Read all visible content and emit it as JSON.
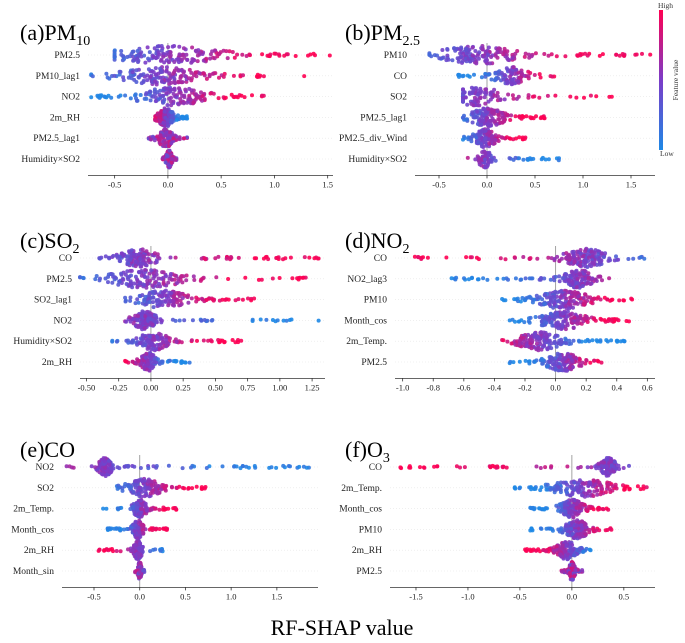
{
  "figure": {
    "xlabel": "RF-SHAP value",
    "colorbar": {
      "title": "Feature value",
      "high_label": "High",
      "low_label": "Low",
      "low_color": "#1e88e5",
      "high_color": "#ff0052"
    }
  },
  "chart_data": [
    {
      "type": "scatter",
      "id": "a",
      "title": "(a)PM",
      "title_sub": "10",
      "xlim": [
        -0.75,
        1.55
      ],
      "ticks": [
        -0.5,
        0.0,
        0.5,
        1.0,
        1.5
      ],
      "tick_labels": [
        "-0.5",
        "0.0",
        "0.5",
        "1.0",
        "1.5"
      ],
      "features": [
        {
          "name": "PM2.5",
          "min": -0.5,
          "max": 1.52,
          "center": 0.0,
          "spread": 0.55,
          "density": 1.0,
          "color_corr": 1
        },
        {
          "name": "PM10_lag1",
          "min": -0.72,
          "max": 1.28,
          "center": -0.05,
          "spread": 0.4,
          "density": 0.9,
          "color_corr": 1
        },
        {
          "name": "NO2",
          "min": -0.72,
          "max": 0.9,
          "center": 0.05,
          "spread": 0.35,
          "density": 0.9,
          "color_corr": 1
        },
        {
          "name": "2m_RH",
          "min": -0.12,
          "max": 0.18,
          "center": -0.02,
          "spread": 0.08,
          "density": 0.9,
          "color_corr": -1
        },
        {
          "name": "PM2.5_lag1",
          "min": -0.18,
          "max": 0.18,
          "center": -0.02,
          "spread": 0.07,
          "density": 0.7,
          "color_corr": 0
        },
        {
          "name": "Humidity×SO2",
          "min": -0.05,
          "max": 0.08,
          "center": 0.01,
          "spread": 0.03,
          "density": 0.7,
          "color_corr": 0
        }
      ]
    },
    {
      "type": "scatter",
      "id": "b",
      "title": "(b)PM",
      "title_sub": "2.5",
      "xlim": [
        -0.75,
        1.75
      ],
      "ticks": [
        -0.5,
        0.0,
        0.5,
        1.0,
        1.5
      ],
      "tick_labels": [
        "-0.5",
        "0.0",
        "0.5",
        "1.0",
        "1.5"
      ],
      "features": [
        {
          "name": "PM10",
          "min": -0.6,
          "max": 1.7,
          "center": -0.1,
          "spread": 0.45,
          "density": 1.0,
          "color_corr": 1
        },
        {
          "name": "CO",
          "min": -0.3,
          "max": 0.7,
          "center": 0.25,
          "spread": 0.2,
          "density": 0.6,
          "color_corr": 1
        },
        {
          "name": "SO2",
          "min": -0.25,
          "max": 1.3,
          "center": -0.1,
          "spread": 0.3,
          "density": 0.6,
          "color_corr": 1
        },
        {
          "name": "PM2.5_lag1",
          "min": -0.25,
          "max": 0.6,
          "center": 0.0,
          "spread": 0.2,
          "density": 0.9,
          "color_corr": 1
        },
        {
          "name": "PM2.5_div_Wind",
          "min": -0.25,
          "max": 0.4,
          "center": -0.02,
          "spread": 0.12,
          "density": 0.7,
          "color_corr": 1
        },
        {
          "name": "Humidity×SO2",
          "min": -0.2,
          "max": 0.75,
          "center": -0.02,
          "spread": 0.08,
          "density": 0.5,
          "color_corr": -1
        }
      ]
    },
    {
      "type": "scatter",
      "id": "c",
      "title": "(c)SO",
      "title_sub": "2",
      "xlim": [
        -0.55,
        1.35
      ],
      "ticks": [
        -0.5,
        -0.25,
        0.0,
        0.25,
        0.5,
        0.75,
        1.0,
        1.25
      ],
      "tick_labels": [
        "-0.50",
        "-0.25",
        "0.00",
        "0.25",
        "0.50",
        "0.75",
        "1.00",
        "1.25"
      ],
      "features": [
        {
          "name": "CO",
          "min": -0.4,
          "max": 1.3,
          "center": -0.1,
          "spread": 0.15,
          "density": 0.9,
          "color_corr": 1
        },
        {
          "name": "PM2.5",
          "min": -0.55,
          "max": 1.2,
          "center": -0.05,
          "spread": 0.3,
          "density": 0.9,
          "color_corr": 1
        },
        {
          "name": "SO2_lag1",
          "min": -0.2,
          "max": 0.8,
          "center": 0.1,
          "spread": 0.2,
          "density": 0.8,
          "color_corr": 1
        },
        {
          "name": "NO2",
          "min": -0.2,
          "max": 1.3,
          "center": -0.05,
          "spread": 0.1,
          "density": 0.9,
          "color_corr": -1
        },
        {
          "name": "Humidity×SO2",
          "min": -0.3,
          "max": 0.7,
          "center": 0.02,
          "spread": 0.12,
          "density": 0.8,
          "color_corr": 1
        },
        {
          "name": "2m_RH",
          "min": -0.2,
          "max": 0.3,
          "center": -0.02,
          "spread": 0.07,
          "density": 0.7,
          "color_corr": -1
        }
      ]
    },
    {
      "type": "scatter",
      "id": "d",
      "title": "(d)NO",
      "title_sub": "2",
      "xlim": [
        -1.05,
        0.65
      ],
      "ticks": [
        -1.0,
        -0.8,
        -0.6,
        -0.4,
        -0.2,
        0.0,
        0.2,
        0.4,
        0.6
      ],
      "tick_labels": [
        "-1.0",
        "-0.8",
        "-0.6",
        "-0.4",
        "-0.2",
        "0.0",
        "0.2",
        "0.4",
        "0.6"
      ],
      "features": [
        {
          "name": "CO",
          "min": -0.92,
          "max": 0.58,
          "center": 0.2,
          "spread": 0.15,
          "density": 1.0,
          "color_corr": -1
        },
        {
          "name": "NO2_lag3",
          "min": -0.68,
          "max": 0.35,
          "center": 0.15,
          "spread": 0.1,
          "density": 0.9,
          "color_corr": 1
        },
        {
          "name": "PM10",
          "min": -0.35,
          "max": 0.5,
          "center": 0.05,
          "spread": 0.18,
          "density": 1.0,
          "color_corr": 1
        },
        {
          "name": "Month_cos",
          "min": -0.3,
          "max": 0.48,
          "center": 0.05,
          "spread": 0.16,
          "density": 1.0,
          "color_corr": 1
        },
        {
          "name": "2m_Temp.",
          "min": -0.35,
          "max": 0.45,
          "center": -0.1,
          "spread": 0.15,
          "density": 1.0,
          "color_corr": -1
        },
        {
          "name": "PM2.5",
          "min": -0.3,
          "max": 0.3,
          "center": 0.05,
          "spread": 0.12,
          "density": 0.9,
          "color_corr": 1
        }
      ]
    },
    {
      "type": "scatter",
      "id": "e",
      "title": "(e)CO",
      "title_sub": "",
      "xlim": [
        -0.85,
        1.95
      ],
      "ticks": [
        -0.5,
        0.0,
        0.5,
        1.0,
        1.5
      ],
      "tick_labels": [
        "-0.5",
        "0.0",
        "0.5",
        "1.0",
        "1.5"
      ],
      "features": [
        {
          "name": "NO2",
          "min": -0.8,
          "max": 1.85,
          "center": -0.38,
          "spread": 0.08,
          "density": 1.0,
          "color_corr": -1
        },
        {
          "name": "SO2",
          "min": -0.25,
          "max": 0.72,
          "center": 0.05,
          "spread": 0.2,
          "density": 0.8,
          "color_corr": 1
        },
        {
          "name": "2m_Temp.",
          "min": -0.4,
          "max": 0.4,
          "center": 0.0,
          "spread": 0.08,
          "density": 0.8,
          "color_corr": 1
        },
        {
          "name": "Month_cos",
          "min": -0.35,
          "max": 0.3,
          "center": -0.02,
          "spread": 0.06,
          "density": 0.7,
          "color_corr": 1
        },
        {
          "name": "2m_RH",
          "min": -0.45,
          "max": 0.25,
          "center": -0.02,
          "spread": 0.05,
          "density": 0.7,
          "color_corr": -1
        },
        {
          "name": "Month_sin",
          "min": -0.05,
          "max": 0.05,
          "center": 0.0,
          "spread": 0.02,
          "density": 0.6,
          "color_corr": 0
        }
      ]
    },
    {
      "type": "scatter",
      "id": "f",
      "title": "(f)O",
      "title_sub": "3",
      "xlim": [
        -1.75,
        0.8
      ],
      "ticks": [
        -1.5,
        -1.0,
        -0.5,
        0.0,
        0.5
      ],
      "tick_labels": [
        "-1.5",
        "-1.0",
        "-0.5",
        "0.0",
        "0.5"
      ],
      "features": [
        {
          "name": "CO",
          "min": -1.65,
          "max": 0.55,
          "center": 0.35,
          "spread": 0.08,
          "density": 1.0,
          "color_corr": -1
        },
        {
          "name": "2m_Temp.",
          "min": -0.55,
          "max": 0.72,
          "center": 0.1,
          "spread": 0.3,
          "density": 1.0,
          "color_corr": 1
        },
        {
          "name": "Month_cos",
          "min": -0.4,
          "max": 0.35,
          "center": 0.0,
          "spread": 0.12,
          "density": 0.9,
          "color_corr": 1
        },
        {
          "name": "PM10",
          "min": -0.4,
          "max": 0.38,
          "center": 0.05,
          "spread": 0.12,
          "density": 0.9,
          "color_corr": 1
        },
        {
          "name": "2m_RH",
          "min": -0.45,
          "max": 0.18,
          "center": -0.05,
          "spread": 0.1,
          "density": 0.9,
          "color_corr": -1
        },
        {
          "name": "PM2.5",
          "min": -0.1,
          "max": 0.1,
          "center": 0.0,
          "spread": 0.03,
          "density": 0.7,
          "color_corr": 0
        }
      ]
    }
  ]
}
